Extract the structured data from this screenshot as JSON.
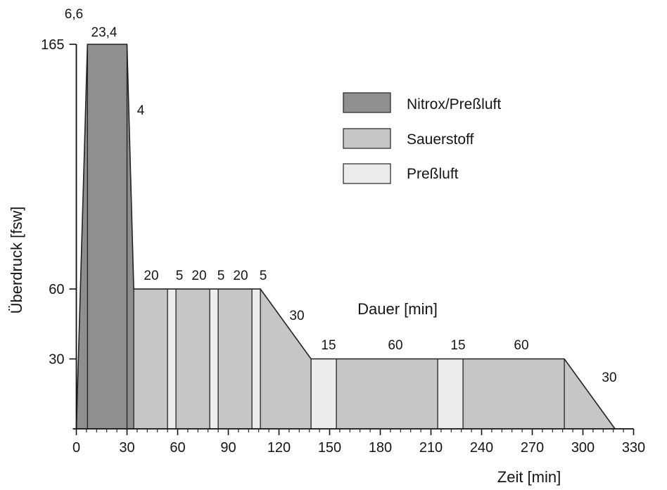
{
  "chart_data": {
    "type": "area",
    "xlabel": "Zeit [min]",
    "ylabel": "Überdruck [fsw]",
    "xlim": [
      0,
      330
    ],
    "ylim": [
      0,
      165
    ],
    "x_ticks": [
      0,
      30,
      60,
      90,
      120,
      150,
      180,
      210,
      240,
      270,
      300,
      330
    ],
    "y_ticks": [
      30,
      60,
      165
    ],
    "grid": false,
    "legend_position": "top-right",
    "legend": [
      {
        "name": "Nitrox/Preßluft",
        "color": "#8f8f8f"
      },
      {
        "name": "Sauerstoff",
        "color": "#c6c6c6"
      },
      {
        "name": "Preßluft",
        "color": "#ececec"
      }
    ],
    "annotation": "Dauer [min]",
    "profile": [
      [
        0,
        0
      ],
      [
        6.6,
        165
      ],
      [
        30,
        165
      ],
      [
        34,
        60
      ],
      [
        109,
        60
      ],
      [
        139,
        30
      ],
      [
        289,
        30
      ],
      [
        319,
        0
      ]
    ],
    "segments": [
      {
        "gas": "Nitrox/Preßluft",
        "start": 0,
        "end": 6.6,
        "duration_label": "6,6"
      },
      {
        "gas": "Nitrox/Preßluft",
        "start": 6.6,
        "end": 30,
        "duration_label": "23,4"
      },
      {
        "gas": "Nitrox/Preßluft",
        "start": 30,
        "end": 34,
        "duration_label": "4"
      },
      {
        "gas": "Sauerstoff",
        "start": 34,
        "end": 54,
        "duration_label": "20"
      },
      {
        "gas": "Preßluft",
        "start": 54,
        "end": 59,
        "duration_label": "5"
      },
      {
        "gas": "Sauerstoff",
        "start": 59,
        "end": 79,
        "duration_label": "20"
      },
      {
        "gas": "Preßluft",
        "start": 79,
        "end": 84,
        "duration_label": "5"
      },
      {
        "gas": "Sauerstoff",
        "start": 84,
        "end": 104,
        "duration_label": "20"
      },
      {
        "gas": "Preßluft",
        "start": 104,
        "end": 109,
        "duration_label": "5"
      },
      {
        "gas": "Sauerstoff",
        "start": 109,
        "end": 139,
        "duration_label": "30"
      },
      {
        "gas": "Preßluft",
        "start": 139,
        "end": 154,
        "duration_label": "15"
      },
      {
        "gas": "Sauerstoff",
        "start": 154,
        "end": 214,
        "duration_label": "60"
      },
      {
        "gas": "Preßluft",
        "start": 214,
        "end": 229,
        "duration_label": "15"
      },
      {
        "gas": "Sauerstoff",
        "start": 229,
        "end": 289,
        "duration_label": "60"
      },
      {
        "gas": "Sauerstoff",
        "start": 289,
        "end": 319,
        "duration_label": "30"
      }
    ]
  }
}
